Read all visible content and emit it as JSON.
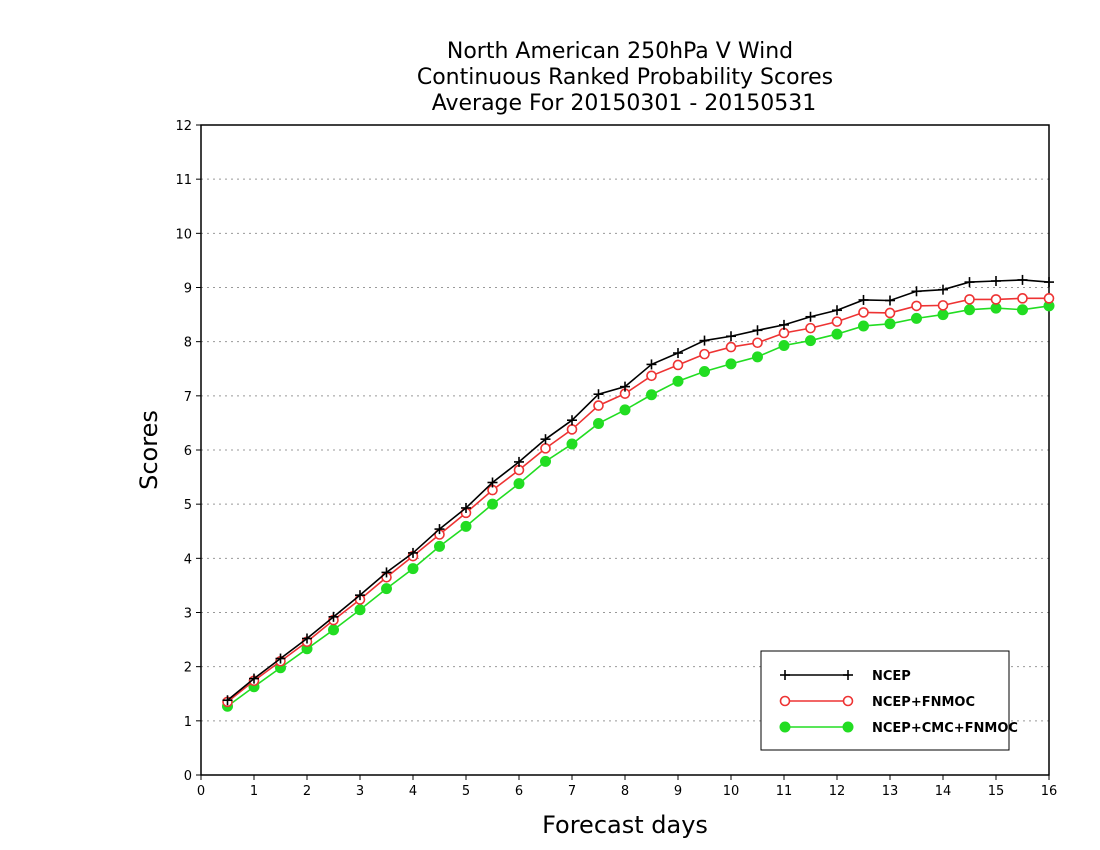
{
  "chart_data": {
    "type": "line",
    "title": [
      "North American 250hPa V Wind",
      "Continuous Ranked Probability Scores",
      "Average For 20150301 - 20150531"
    ],
    "xlabel": "Forecast days",
    "ylabel": "Scores",
    "xlim": [
      0,
      16
    ],
    "ylim": [
      0,
      12
    ],
    "xticks": [
      0,
      1,
      2,
      3,
      4,
      5,
      6,
      7,
      8,
      9,
      10,
      11,
      12,
      13,
      14,
      15,
      16
    ],
    "yticks": [
      0,
      1,
      2,
      3,
      4,
      5,
      6,
      7,
      8,
      9,
      10,
      11,
      12
    ],
    "grid": "dotted horizontal",
    "legend_position": "bottom-right",
    "x": [
      0.5,
      1,
      1.5,
      2,
      2.5,
      3,
      3.5,
      4,
      4.5,
      5,
      5.5,
      6,
      6.5,
      7,
      7.5,
      8,
      8.5,
      9,
      9.5,
      10,
      10.5,
      11,
      11.5,
      12,
      12.5,
      13,
      13.5,
      14,
      14.5,
      15,
      15.5,
      16
    ],
    "series": [
      {
        "name": "NCEP",
        "color": "#000000",
        "marker": "plus",
        "values": [
          1.38,
          1.78,
          2.15,
          2.52,
          2.92,
          3.32,
          3.74,
          4.1,
          4.54,
          4.93,
          5.4,
          5.78,
          6.2,
          6.55,
          7.03,
          7.17,
          7.58,
          7.79,
          8.02,
          8.1,
          8.21,
          8.31,
          8.46,
          8.58,
          8.77,
          8.76,
          8.93,
          8.96,
          9.1,
          9.12,
          9.14,
          9.1
        ]
      },
      {
        "name": "NCEP+FNMOC",
        "color": "#ee3333",
        "marker": "open-circle",
        "values": [
          1.35,
          1.74,
          2.1,
          2.46,
          2.86,
          3.24,
          3.65,
          4.04,
          4.44,
          4.84,
          5.26,
          5.63,
          6.03,
          6.38,
          6.82,
          7.04,
          7.37,
          7.57,
          7.77,
          7.9,
          7.98,
          8.16,
          8.25,
          8.37,
          8.54,
          8.53,
          8.66,
          8.67,
          8.78,
          8.78,
          8.8,
          8.8
        ]
      },
      {
        "name": "NCEP+CMC+FNMOC",
        "color": "#22dd22",
        "marker": "filled-circle",
        "values": [
          1.27,
          1.63,
          1.98,
          2.33,
          2.68,
          3.05,
          3.44,
          3.81,
          4.22,
          4.59,
          5.0,
          5.38,
          5.79,
          6.11,
          6.49,
          6.74,
          7.02,
          7.27,
          7.45,
          7.59,
          7.72,
          7.93,
          8.02,
          8.14,
          8.29,
          8.33,
          8.43,
          8.5,
          8.59,
          8.62,
          8.59,
          8.66
        ]
      }
    ]
  }
}
